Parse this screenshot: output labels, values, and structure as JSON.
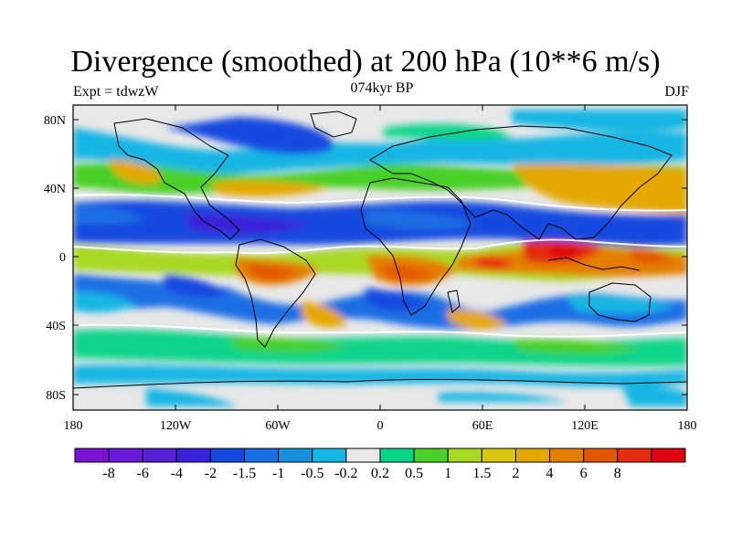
{
  "title": "Divergence (smoothed) at 200 hPa (10**6 m/s)",
  "subtitle_left": "Expt = tdwzW",
  "subtitle_center": "074kyr BP",
  "subtitle_right": "DJF",
  "lat_labels": [
    "80N",
    "40N",
    "0",
    "40S",
    "80S"
  ],
  "lon_labels": [
    "180",
    "120W",
    "60W",
    "0",
    "60E",
    "120E",
    "180"
  ],
  "colorbar": {
    "colors": [
      "#7a12d6",
      "#6a18d9",
      "#5a1ed6",
      "#3a22d8",
      "#1448e0",
      "#1a6ee4",
      "#1692dc",
      "#14b6e4",
      "#e8e8e8",
      "#08d48a",
      "#4ad028",
      "#a8d820",
      "#d8c810",
      "#e4a800",
      "#e47e00",
      "#e45600",
      "#e42c10",
      "#e00010"
    ],
    "labels": [
      "-8",
      "-6",
      "-4",
      "-2",
      "-1.5",
      "-1",
      "-0.5",
      "-0.2",
      "0.2",
      "0.5",
      "1",
      "1.5",
      "2",
      "4",
      "6",
      "8"
    ]
  }
}
